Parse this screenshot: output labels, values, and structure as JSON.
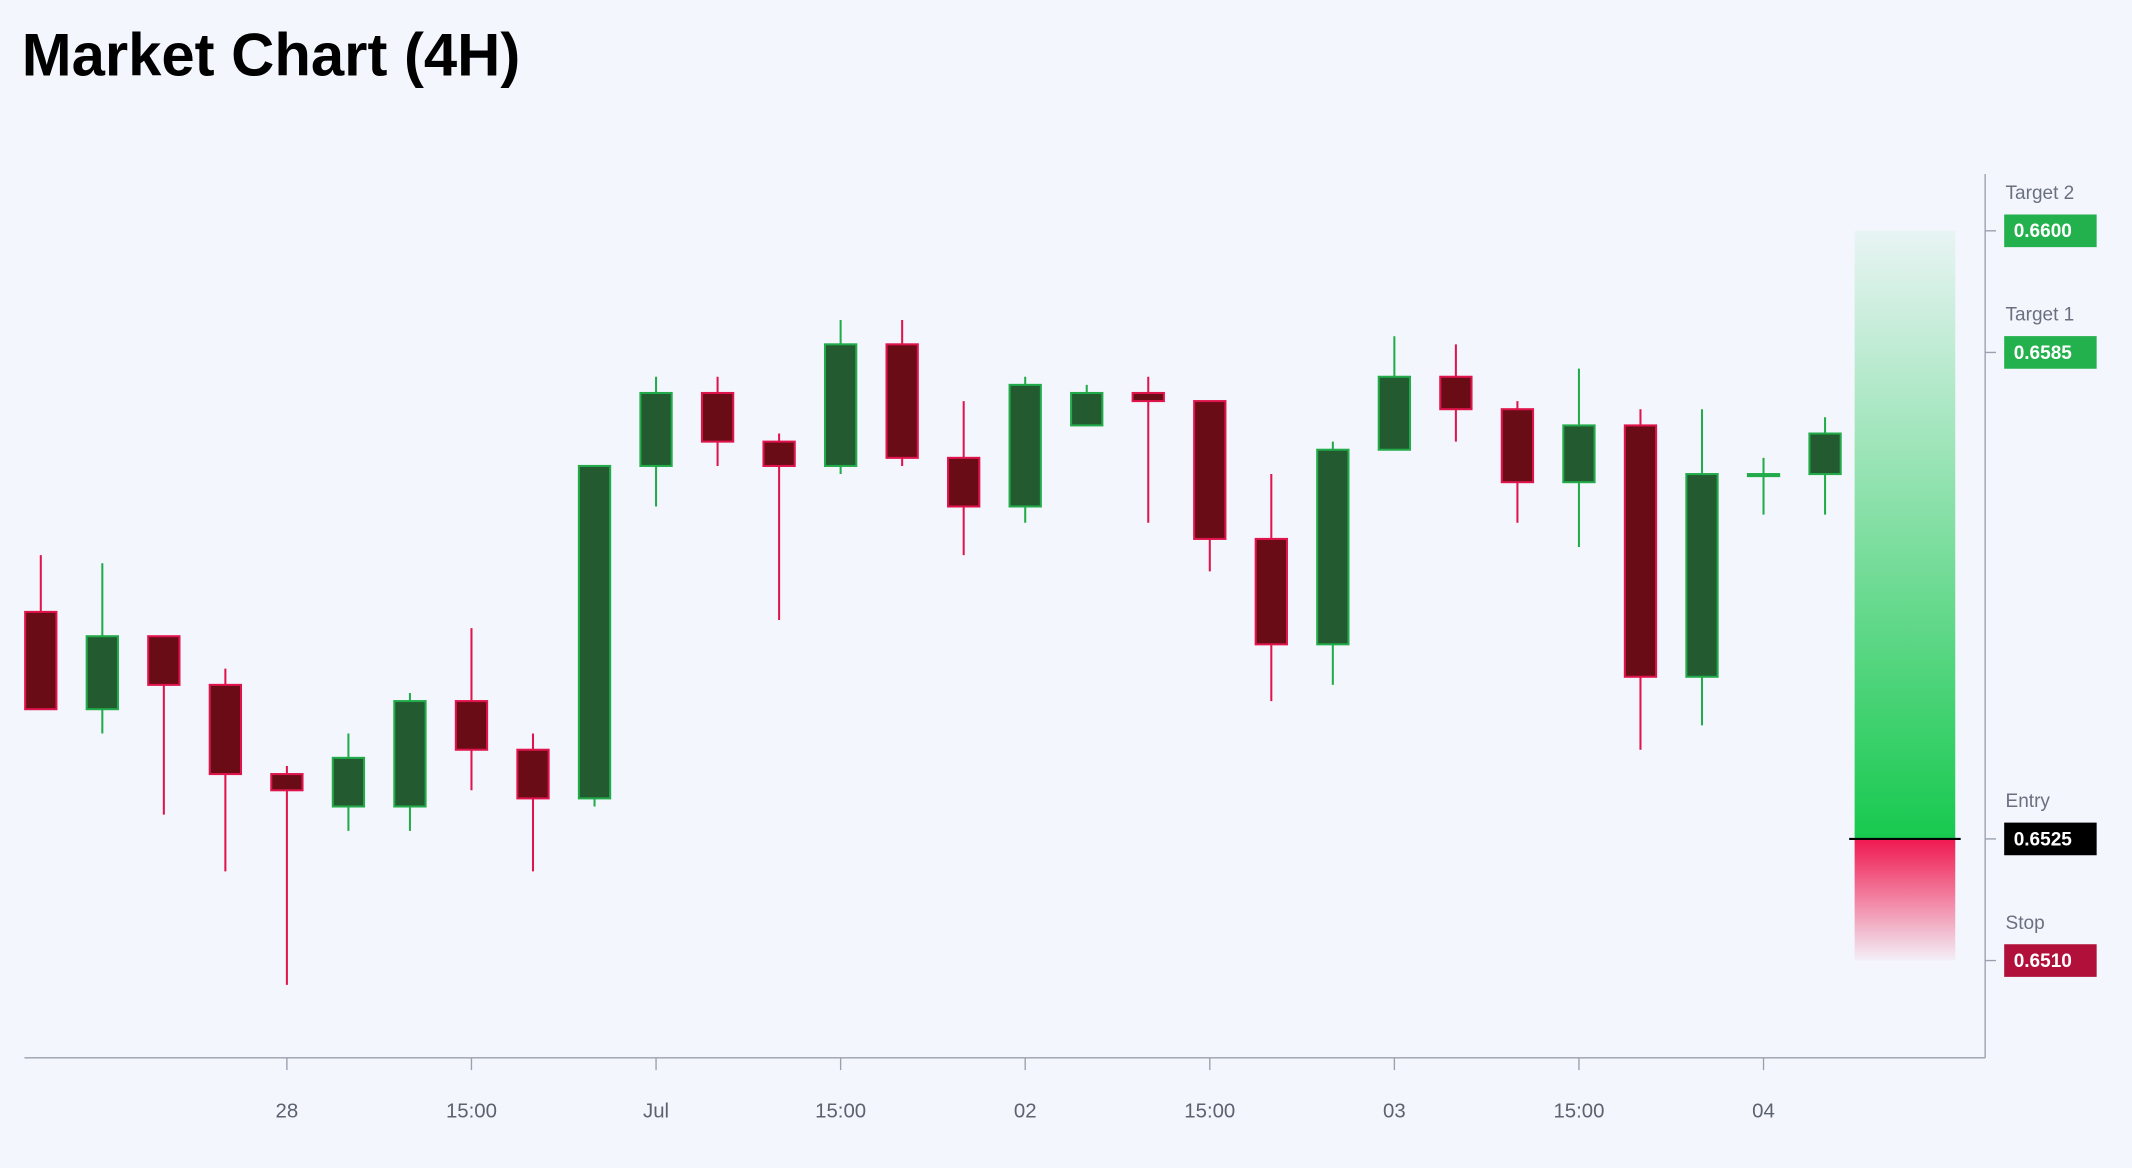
{
  "chart_data": {
    "type": "candlestick",
    "title": "Market Chart (4H)",
    "categories": [
      null,
      null,
      null,
      null,
      "28",
      null,
      null,
      "15:00",
      null,
      null,
      "Jul",
      null,
      null,
      "15:00",
      null,
      null,
      "02",
      null,
      null,
      "15:00",
      null,
      null,
      "03",
      null,
      null,
      "15:00",
      null,
      null,
      "04",
      null
    ],
    "open": [
      0.6553,
      0.6541,
      0.655,
      0.6544,
      0.6533,
      0.6529,
      0.6529,
      0.6542,
      0.6536,
      0.653,
      0.6571,
      0.658,
      0.6574,
      0.6571,
      0.6586,
      0.6572,
      0.6566,
      0.6576,
      0.658,
      0.6579,
      0.6562,
      0.6549,
      0.6573,
      0.6582,
      0.6578,
      0.6569,
      0.6576,
      0.6545,
      0.657,
      0.657
    ],
    "high": [
      0.656,
      0.6559,
      0.655,
      0.6546,
      0.6534,
      0.6538,
      0.6543,
      0.6551,
      0.6538,
      0.6571,
      0.6582,
      0.6582,
      0.6575,
      0.6589,
      0.6589,
      0.6579,
      0.6582,
      0.6581,
      0.6582,
      0.6579,
      0.657,
      0.6574,
      0.6587,
      0.6586,
      0.6579,
      0.6583,
      0.6578,
      0.6578,
      0.6572,
      0.6577
    ],
    "low": [
      0.6541,
      0.6538,
      0.6528,
      0.6521,
      0.6507,
      0.6526,
      0.6526,
      0.6531,
      0.6521,
      0.6529,
      0.6566,
      0.6571,
      0.6552,
      0.657,
      0.6571,
      0.656,
      0.6564,
      0.6576,
      0.6564,
      0.6558,
      0.6542,
      0.6544,
      0.6573,
      0.6574,
      0.6564,
      0.6561,
      0.6536,
      0.6539,
      0.6565,
      0.6565
    ],
    "close": [
      0.6541,
      0.655,
      0.6544,
      0.6533,
      0.6531,
      0.6535,
      0.6542,
      0.6536,
      0.653,
      0.6571,
      0.658,
      0.6574,
      0.6571,
      0.6586,
      0.6572,
      0.6566,
      0.6581,
      0.658,
      0.6579,
      0.6562,
      0.6549,
      0.6573,
      0.6582,
      0.6578,
      0.6569,
      0.6576,
      0.6545,
      0.657,
      0.657,
      0.6575
    ],
    "ylim": [
      0.6498,
      0.6607
    ],
    "colors": {
      "up_body": "#235a30",
      "up_line": "#22ab4a",
      "down_body": "#6a0c16",
      "down_line": "#e0144c"
    },
    "levels": {
      "names": [
        "Target 2",
        "Target 1",
        "Entry",
        "Stop"
      ],
      "values": [
        0.66,
        0.6585,
        0.6525,
        0.651
      ],
      "value_labels": [
        "0.6600",
        "0.6585",
        "0.6525",
        "0.6510"
      ],
      "colors": [
        "#22b14c",
        "#22b14c",
        "#000000",
        "#b0103a"
      ]
    }
  }
}
